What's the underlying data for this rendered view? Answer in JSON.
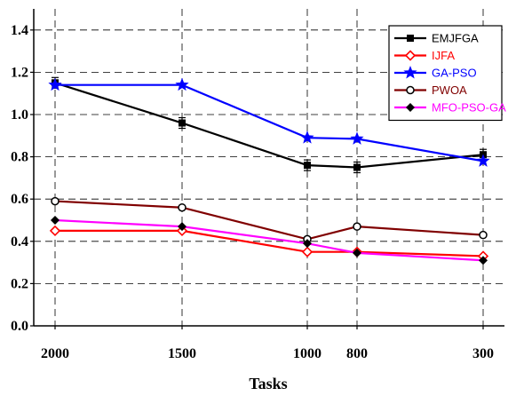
{
  "chart_data": {
    "type": "line",
    "categories": [
      "2000",
      "1500",
      "1000",
      "800",
      "300"
    ],
    "x": [
      2000,
      1500,
      1000,
      800,
      300
    ],
    "xlabel": "Tasks",
    "ylabel": "",
    "ylim": [
      0.0,
      1.5
    ],
    "yticks": [
      "0.0",
      "0.2",
      "0.4",
      "0.6",
      "0.8",
      "1.0",
      "1.2",
      "1.4"
    ],
    "grid": true,
    "grid_style": "dashed",
    "legend_position": "top-right",
    "series": [
      {
        "name": "EMJFGA",
        "values": [
          1.15,
          0.96,
          0.76,
          0.75,
          0.81
        ],
        "color": "#000000",
        "marker": "filled-square",
        "error_bars": true
      },
      {
        "name": "IJFA",
        "values": [
          0.45,
          0.45,
          0.35,
          0.35,
          0.33
        ],
        "color": "#ff0000",
        "marker": "open-diamond"
      },
      {
        "name": "GA-PSO",
        "values": [
          1.14,
          1.14,
          0.89,
          0.885,
          0.78
        ],
        "color": "#0000ff",
        "marker": "star"
      },
      {
        "name": "PWOA",
        "values": [
          0.59,
          0.56,
          0.41,
          0.47,
          0.43
        ],
        "color": "#800000",
        "marker": "open-circle"
      },
      {
        "name": "MFO-PSO-GA",
        "values": [
          0.5,
          0.47,
          0.39,
          0.345,
          0.31
        ],
        "color": "#ff00ff",
        "marker": "filled-diamond"
      }
    ]
  }
}
